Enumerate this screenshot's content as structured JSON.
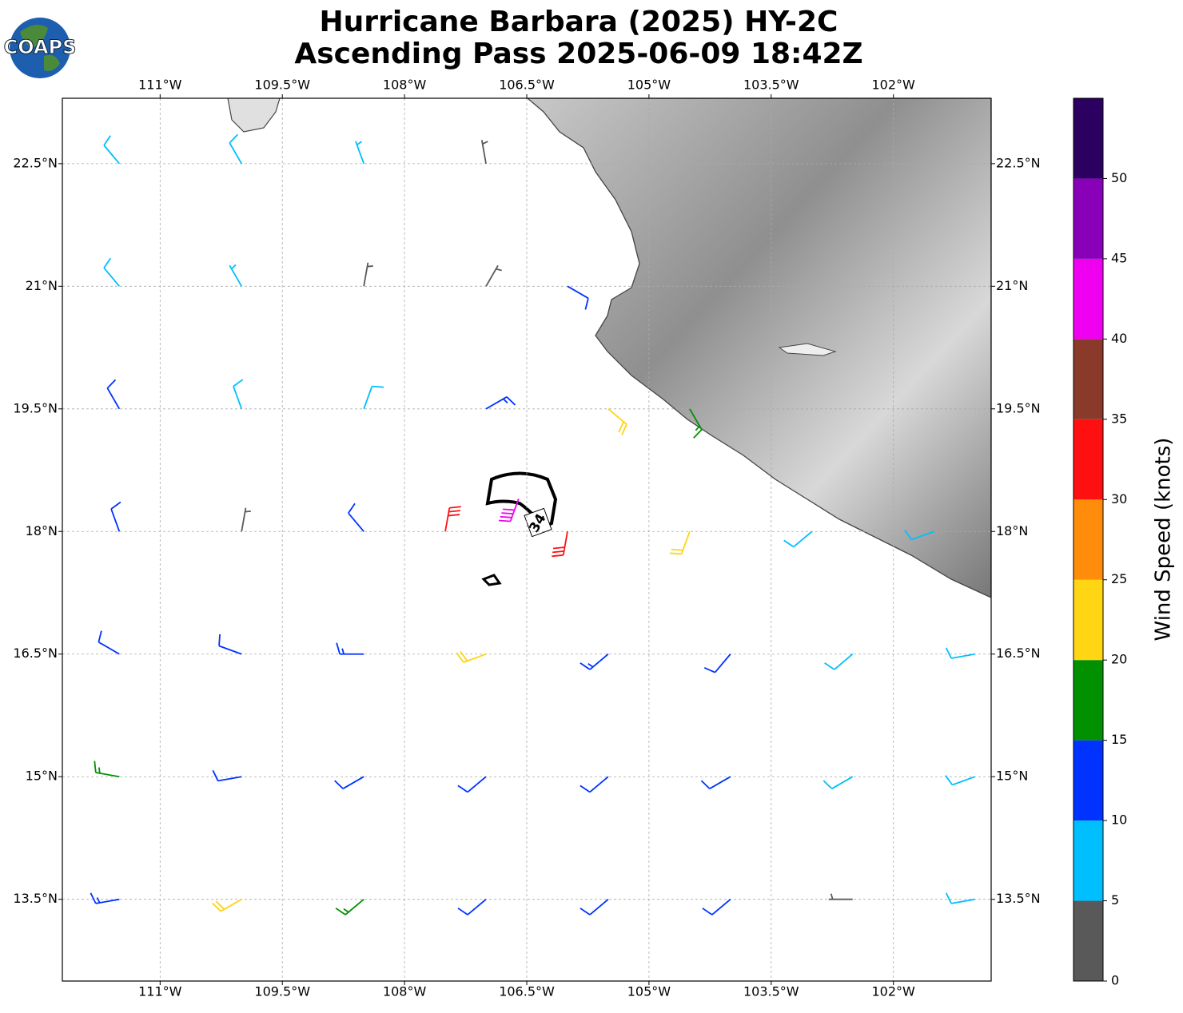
{
  "chart_data": {
    "type": "wind-barbs",
    "logo": "COAPS",
    "title": "Hurricane Barbara (2025) HY-2C",
    "subtitle": "Ascending Pass 2025-06-09 18:42Z",
    "xlim": [
      -112.2,
      -100.8
    ],
    "ylim": [
      12.5,
      23.3
    ],
    "xticks": [
      {
        "value": -111,
        "label": "111°W"
      },
      {
        "value": -109.5,
        "label": "109.5°W"
      },
      {
        "value": -108,
        "label": "108°W"
      },
      {
        "value": -106.5,
        "label": "106.5°W"
      },
      {
        "value": -105,
        "label": "105°W"
      },
      {
        "value": -103.5,
        "label": "103.5°W"
      },
      {
        "value": -102,
        "label": "102°W"
      }
    ],
    "yticks": [
      {
        "value": 13.5,
        "label": "13.5°N"
      },
      {
        "value": 15,
        "label": "15°N"
      },
      {
        "value": 16.5,
        "label": "16.5°N"
      },
      {
        "value": 18,
        "label": "18°N"
      },
      {
        "value": 19.5,
        "label": "19.5°N"
      },
      {
        "value": 21,
        "label": "21°N"
      },
      {
        "value": 22.5,
        "label": "22.5°N"
      }
    ],
    "grid": true,
    "contour_label": "34",
    "barbs": {
      "lon": [
        -111.5,
        -110,
        -108.5,
        -107,
        -111.5,
        -110,
        -108.5,
        -107,
        -106,
        -111.5,
        -110,
        -108.5,
        -107,
        -105.5,
        -104.5,
        -111.5,
        -110,
        -108.5,
        -107.5,
        -106,
        -104.5,
        -103,
        -101.5,
        -106.6,
        -111.5,
        -110,
        -108.5,
        -107,
        -105.5,
        -104,
        -102.5,
        -101,
        -111.5,
        -110,
        -108.5,
        -107,
        -105.5,
        -104,
        -102.5,
        -101,
        -111.5,
        -110,
        -108.5,
        -107,
        -105.5,
        -104,
        -102.5,
        -101
      ],
      "lat": [
        22.5,
        22.5,
        22.5,
        22.5,
        21,
        21,
        21,
        21,
        21,
        19.5,
        19.5,
        19.5,
        19.5,
        19.5,
        19.5,
        18,
        18,
        18,
        18,
        18,
        18,
        18,
        18,
        18.4,
        16.5,
        16.5,
        16.5,
        16.5,
        16.5,
        16.5,
        16.5,
        16.5,
        15,
        15,
        15,
        15,
        15,
        15,
        15,
        15,
        13.5,
        13.5,
        13.5,
        13.5,
        13.5,
        13.5,
        13.5,
        13.5
      ],
      "speed": [
        8,
        8,
        7,
        4,
        8,
        6,
        3,
        3,
        10,
        12,
        9,
        8,
        14,
        22,
        17,
        12,
        4,
        12,
        30,
        32,
        20,
        8,
        8,
        41,
        12,
        12,
        14,
        20,
        14,
        10,
        8,
        8,
        15,
        12,
        10,
        12,
        12,
        12,
        8,
        9,
        14,
        20,
        16,
        12,
        12,
        10,
        4,
        8
      ],
      "direction": [
        320,
        330,
        340,
        350,
        320,
        330,
        10,
        30,
        120,
        330,
        340,
        20,
        60,
        130,
        150,
        340,
        10,
        320,
        10,
        190,
        200,
        230,
        250,
        200,
        300,
        290,
        270,
        250,
        230,
        220,
        230,
        260,
        280,
        260,
        240,
        230,
        230,
        240,
        240,
        250,
        260,
        240,
        230,
        230,
        230,
        230,
        270,
        260
      ]
    },
    "colorbar": {
      "label": "Wind Speed (knots)",
      "bounds": [
        0,
        5,
        10,
        15,
        20,
        25,
        30,
        35,
        40,
        45,
        50,
        55
      ],
      "colors": [
        "#595959",
        "#00bfff",
        "#0033ff",
        "#009000",
        "#ffd514",
        "#ff8c0a",
        "#ff1010",
        "#8a3a2a",
        "#f000f0",
        "#8800b8",
        "#2c0060"
      ],
      "ticks": [
        0,
        5,
        10,
        15,
        20,
        25,
        30,
        35,
        40,
        45,
        50
      ]
    }
  }
}
